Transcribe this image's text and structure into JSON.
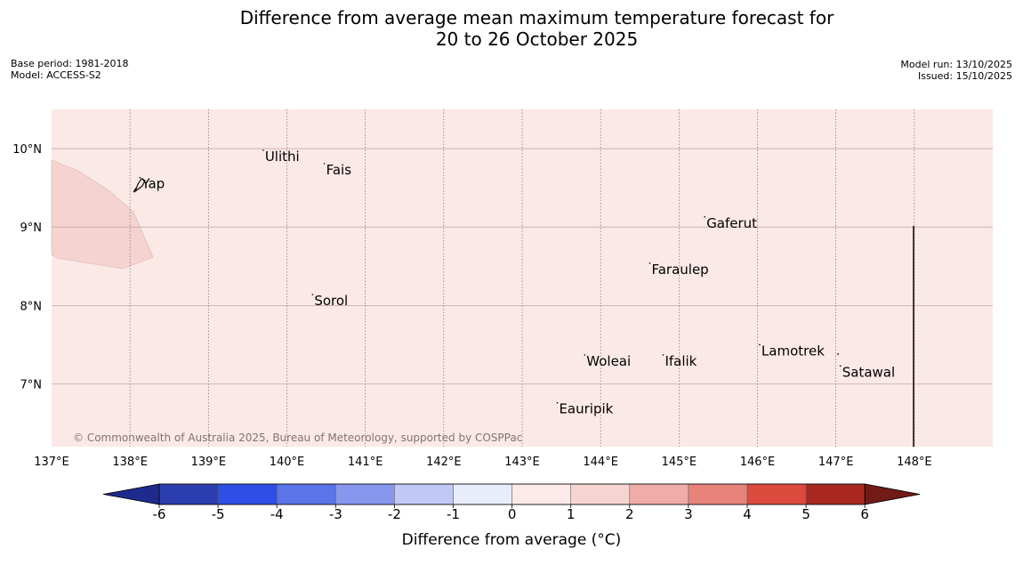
{
  "header": {
    "title_line1": "Difference from average mean maximum temperature forecast for",
    "title_line2": "20 to 26 October 2025",
    "base_period": "Base period: 1981-2018",
    "model": "Model: ACCESS-S2",
    "model_run": "Model run: 13/10/2025",
    "issued": "Issued: 15/10/2025"
  },
  "map": {
    "lon_range": [
      137,
      149
    ],
    "lat_range": [
      6.2,
      10.5
    ],
    "lon_ticks": [
      "137°E",
      "138°E",
      "139°E",
      "140°E",
      "141°E",
      "142°E",
      "143°E",
      "144°E",
      "145°E",
      "146°E",
      "147°E",
      "148°E"
    ],
    "lat_ticks": [
      "10°N",
      "9°N",
      "8°N",
      "7°N"
    ],
    "background_color": "#fbe9e7",
    "warm_zone_color": "#f5d3d1",
    "copyright": "© Commonwealth of Australia 2025, Bureau of Meteorology, supported by COSPPac",
    "places": [
      {
        "name": "Yap",
        "lon": 138.15,
        "lat": 9.55
      },
      {
        "name": "Ulithi",
        "lon": 139.72,
        "lat": 9.9
      },
      {
        "name": "Fais",
        "lon": 140.5,
        "lat": 9.73
      },
      {
        "name": "Gaferut",
        "lon": 145.35,
        "lat": 9.05
      },
      {
        "name": "Faraulep",
        "lon": 144.65,
        "lat": 8.46
      },
      {
        "name": "Sorol",
        "lon": 140.35,
        "lat": 8.06
      },
      {
        "name": "Lamotrek",
        "lon": 146.05,
        "lat": 7.42
      },
      {
        "name": "Woleai",
        "lon": 143.82,
        "lat": 7.29
      },
      {
        "name": "Ifalik",
        "lon": 144.82,
        "lat": 7.29
      },
      {
        "name": "Satawal",
        "lon": 147.08,
        "lat": 7.15
      },
      {
        "name": "Eauripik",
        "lon": 143.47,
        "lat": 6.68
      }
    ]
  },
  "colorbar": {
    "label": "Difference from average (°C)",
    "ticks": [
      "-6",
      "-5",
      "-4",
      "-3",
      "-2",
      "-1",
      "0",
      "1",
      "2",
      "3",
      "4",
      "5",
      "6"
    ],
    "colors": [
      "#1e2a8c",
      "#2b3daf",
      "#2f4ee6",
      "#5b74e8",
      "#8897ee",
      "#c0c8f6",
      "#e9ecfb",
      "#fde9e9",
      "#f5d4d2",
      "#efaca8",
      "#e8837c",
      "#dc4a3e",
      "#a8281f",
      "#721a16"
    ]
  }
}
